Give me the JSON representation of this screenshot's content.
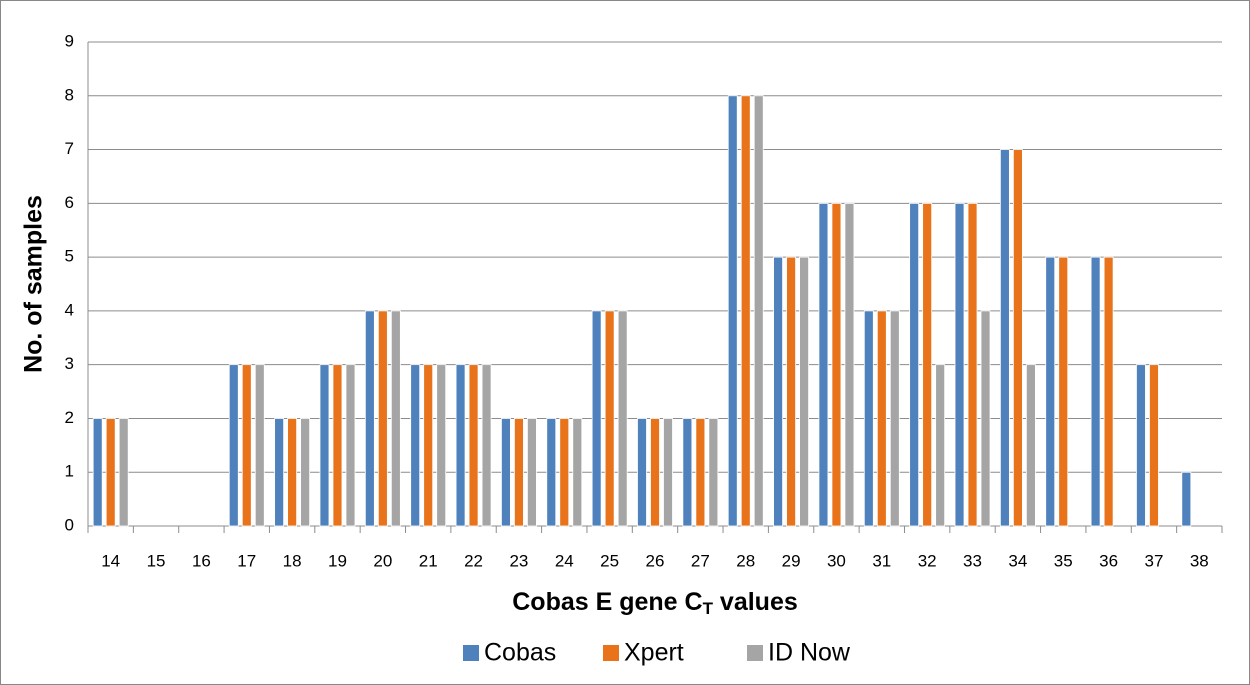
{
  "chart_data": {
    "type": "bar",
    "x_label": {
      "text": "Cobas E gene C",
      "subscript": "T",
      "rest": " values"
    },
    "y_label": "No. of samples",
    "categories": [
      "14",
      "15",
      "16",
      "17",
      "18",
      "19",
      "20",
      "21",
      "22",
      "23",
      "24",
      "25",
      "26",
      "27",
      "28",
      "29",
      "30",
      "31",
      "32",
      "33",
      "34",
      "35",
      "36",
      "37",
      "38"
    ],
    "series": [
      {
        "name": "Cobas",
        "color": "#4f81bd",
        "values": [
          2,
          0,
          0,
          3,
          2,
          3,
          4,
          3,
          3,
          2,
          2,
          4,
          2,
          2,
          8,
          5,
          6,
          4,
          6,
          6,
          7,
          5,
          5,
          3,
          1
        ]
      },
      {
        "name": "Xpert",
        "color": "#e8731a",
        "values": [
          2,
          0,
          0,
          3,
          2,
          3,
          4,
          3,
          3,
          2,
          2,
          4,
          2,
          2,
          8,
          5,
          6,
          4,
          6,
          6,
          7,
          5,
          5,
          3,
          0
        ]
      },
      {
        "name": "ID Now",
        "color": "#a5a5a5",
        "values": [
          2,
          0,
          0,
          3,
          2,
          3,
          4,
          3,
          3,
          2,
          2,
          4,
          2,
          2,
          8,
          5,
          6,
          4,
          3,
          4,
          3,
          0,
          0,
          0,
          0
        ]
      }
    ],
    "ylim": [
      0,
      9
    ],
    "yticks": [
      0,
      1,
      2,
      3,
      4,
      5,
      6,
      7,
      8,
      9
    ],
    "grid": true,
    "legend": "bottom"
  }
}
